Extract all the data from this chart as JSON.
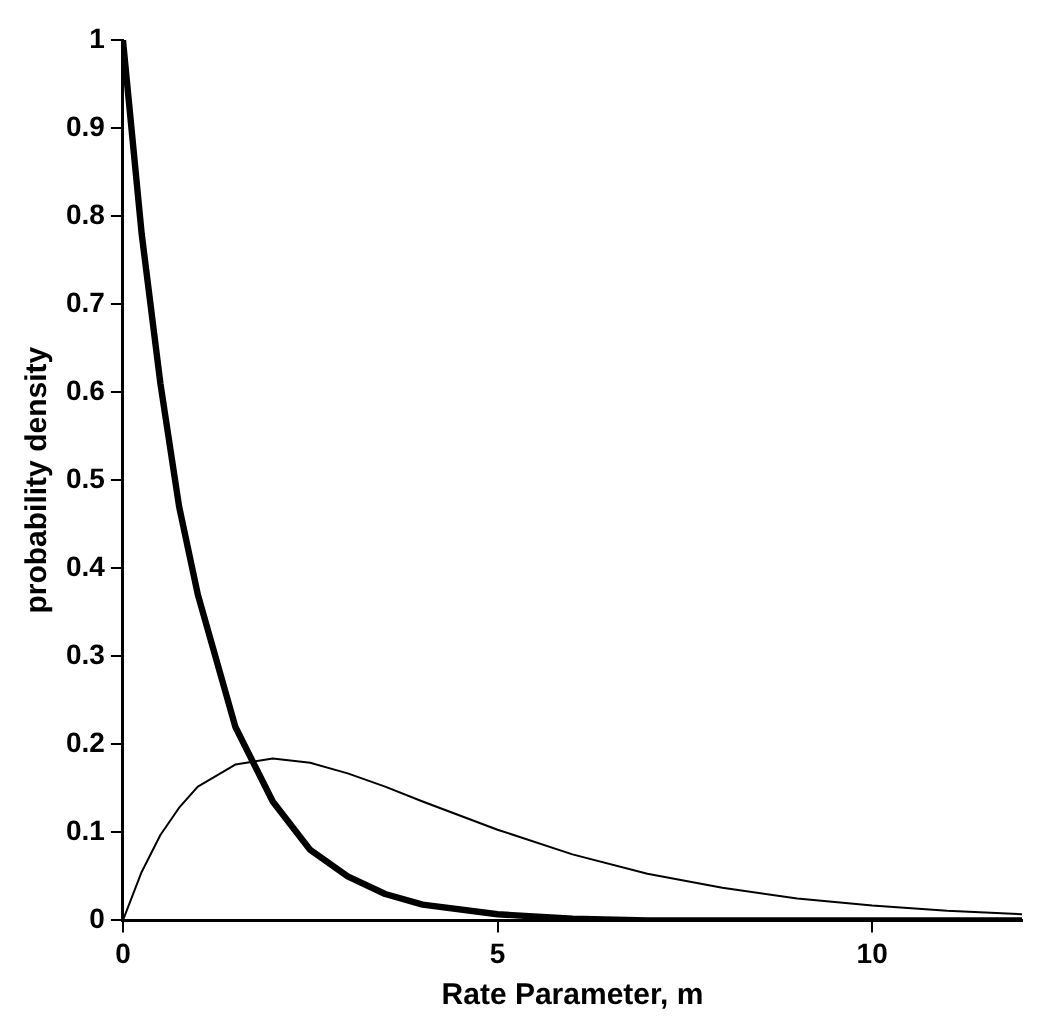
{
  "chart_data": {
    "type": "line",
    "xlabel": "Rate Parameter, m",
    "ylabel": "probability density",
    "x": [
      0,
      0.25,
      0.5,
      0.75,
      1,
      1.5,
      2,
      2.5,
      3,
      3.5,
      4,
      5,
      6,
      7,
      8,
      9,
      10,
      11,
      12
    ],
    "series": [
      {
        "color": "#000000",
        "values": [
          1,
          0.78,
          0.61,
          0.47,
          0.37,
          0.22,
          0.135,
          0.08,
          0.05,
          0.03,
          0.018,
          0.007,
          0.002,
          0,
          0,
          0,
          0,
          0,
          0
        ]
      },
      {
        "color": "#000000",
        "values": [
          0,
          0.055,
          0.097,
          0.128,
          0.152,
          0.177,
          0.184,
          0.179,
          0.167,
          0.152,
          0.135,
          0.103,
          0.075,
          0.053,
          0.037,
          0.025,
          0.017,
          0.011,
          0.007
        ]
      }
    ],
    "xlim": [
      0,
      12
    ],
    "xticks": [
      0,
      5,
      10
    ],
    "ylim": [
      0,
      1
    ],
    "yticks": [
      0,
      0.1,
      0.2,
      0.3,
      0.4,
      0.5,
      0.6,
      0.7,
      0.8,
      0.9,
      1
    ],
    "grid": false,
    "legend": false,
    "marker": "none",
    "line_style": "solid"
  }
}
